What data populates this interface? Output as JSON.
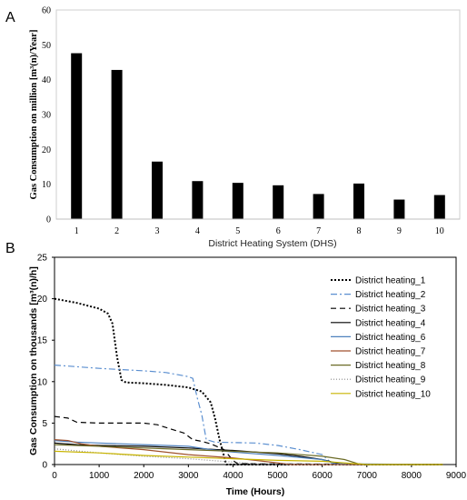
{
  "chart_data": [
    {
      "panel": "A",
      "type": "bar",
      "categories": [
        "1",
        "2",
        "3",
        "4",
        "5",
        "6",
        "7",
        "8",
        "9",
        "10"
      ],
      "values": [
        47.6,
        42.8,
        16.5,
        10.9,
        10.4,
        9.7,
        7.2,
        10.2,
        5.6,
        6.9
      ],
      "title": "",
      "xlabel": "District Heating System (DHS)",
      "ylabel": "Gas Consumption on million [m³(n)/Year]",
      "ylim": [
        0,
        60
      ],
      "yticks": [
        "0",
        "10",
        "20",
        "30",
        "40",
        "50",
        "60"
      ],
      "grid": false,
      "legend": "none",
      "bar_color": "#000000"
    },
    {
      "panel": "B",
      "type": "line",
      "title": "",
      "xlabel": "Time (Hours)",
      "ylabel": "Gas Consumption on thousands [m³(n)/h]",
      "xlim": [
        0,
        9000
      ],
      "ylim": [
        0,
        25
      ],
      "xticks": [
        "0",
        "1000",
        "2000",
        "3000",
        "4000",
        "5000",
        "6000",
        "7000",
        "8000",
        "9000"
      ],
      "yticks": [
        "0",
        "5",
        "10",
        "15",
        "20",
        "25"
      ],
      "grid": false,
      "legend": "top-right",
      "series": [
        {
          "name": "District heating_1",
          "color": "#000000",
          "dash": "2,2",
          "width": 2,
          "points": [
            [
              0,
              20.0
            ],
            [
              500,
              19.5
            ],
            [
              1000,
              18.8
            ],
            [
              1200,
              18.2
            ],
            [
              1300,
              17.0
            ],
            [
              1400,
              13.0
            ],
            [
              1500,
              10.2
            ],
            [
              1600,
              9.9
            ],
            [
              2000,
              9.8
            ],
            [
              2500,
              9.6
            ],
            [
              3000,
              9.3
            ],
            [
              3300,
              8.8
            ],
            [
              3500,
              7.5
            ],
            [
              3600,
              5.5
            ],
            [
              3700,
              3.0
            ],
            [
              3800,
              1.0
            ],
            [
              3850,
              0.0
            ],
            [
              8700,
              0.0
            ]
          ]
        },
        {
          "name": "District heating_2",
          "color": "#5b8fd0",
          "dash": "7,3,2,3",
          "width": 1.2,
          "points": [
            [
              0,
              12.0
            ],
            [
              500,
              11.8
            ],
            [
              1000,
              11.6
            ],
            [
              2000,
              11.3
            ],
            [
              2500,
              11.1
            ],
            [
              3000,
              10.6
            ],
            [
              3100,
              10.4
            ],
            [
              3200,
              8.0
            ],
            [
              3300,
              6.0
            ],
            [
              3400,
              3.0
            ],
            [
              3600,
              2.7
            ],
            [
              4500,
              2.6
            ],
            [
              5000,
              2.3
            ],
            [
              5500,
              1.8
            ],
            [
              6000,
              1.2
            ],
            [
              6200,
              0.2
            ],
            [
              6400,
              0.0
            ],
            [
              8700,
              0.0
            ]
          ]
        },
        {
          "name": "District heating_3",
          "color": "#000000",
          "dash": "6,4",
          "width": 1.2,
          "points": [
            [
              0,
              5.8
            ],
            [
              300,
              5.6
            ],
            [
              500,
              5.1
            ],
            [
              1000,
              5.0
            ],
            [
              2000,
              5.0
            ],
            [
              2300,
              4.8
            ],
            [
              2600,
              4.3
            ],
            [
              2900,
              3.8
            ],
            [
              3100,
              3.0
            ],
            [
              3300,
              2.8
            ],
            [
              3500,
              2.5
            ],
            [
              3800,
              1.8
            ],
            [
              4000,
              0.5
            ],
            [
              4100,
              0.1
            ],
            [
              8700,
              0.0
            ]
          ]
        },
        {
          "name": "District heating_4",
          "color": "#000000",
          "dash": "",
          "width": 1.2,
          "points": [
            [
              0,
              2.6
            ],
            [
              500,
              2.4
            ],
            [
              1000,
              2.3
            ],
            [
              2000,
              2.2
            ],
            [
              3000,
              2.0
            ],
            [
              4000,
              1.7
            ],
            [
              5000,
              1.3
            ],
            [
              5500,
              1.0
            ],
            [
              6000,
              0.6
            ],
            [
              6300,
              0.2
            ],
            [
              6500,
              0.0
            ],
            [
              8700,
              0.0
            ]
          ]
        },
        {
          "name": "District heating_6",
          "color": "#4f81bd",
          "dash": "",
          "width": 1.2,
          "points": [
            [
              0,
              2.9
            ],
            [
              500,
              2.7
            ],
            [
              1000,
              2.6
            ],
            [
              2000,
              2.4
            ],
            [
              3000,
              2.2
            ],
            [
              3500,
              1.8
            ],
            [
              4000,
              1.5
            ],
            [
              5000,
              1.1
            ],
            [
              6000,
              0.6
            ],
            [
              6300,
              0.1
            ],
            [
              8700,
              0.0
            ]
          ]
        },
        {
          "name": "District heating_7",
          "color": "#a0522d",
          "dash": "",
          "width": 1.2,
          "points": [
            [
              0,
              3.0
            ],
            [
              300,
              2.9
            ],
            [
              600,
              2.5
            ],
            [
              1000,
              2.2
            ],
            [
              2000,
              1.8
            ],
            [
              3000,
              1.2
            ],
            [
              4000,
              0.8
            ],
            [
              4500,
              0.5
            ],
            [
              5000,
              0.2
            ],
            [
              5300,
              0.0
            ],
            [
              8700,
              0.0
            ]
          ]
        },
        {
          "name": "District heating_8",
          "color": "#6b6b26",
          "dash": "",
          "width": 1.2,
          "points": [
            [
              0,
              2.4
            ],
            [
              1000,
              2.2
            ],
            [
              2000,
              2.0
            ],
            [
              3000,
              1.8
            ],
            [
              4000,
              1.6
            ],
            [
              5000,
              1.4
            ],
            [
              6000,
              1.0
            ],
            [
              6500,
              0.6
            ],
            [
              6800,
              0.1
            ],
            [
              7000,
              0.0
            ],
            [
              8700,
              0.0
            ]
          ]
        },
        {
          "name": "District heating_9",
          "color": "#8c8c8c",
          "dash": "1,2",
          "width": 1.2,
          "points": [
            [
              0,
              1.9
            ],
            [
              1000,
              1.4
            ],
            [
              2000,
              1.0
            ],
            [
              3000,
              0.7
            ],
            [
              4000,
              0.3
            ],
            [
              4500,
              0.1
            ],
            [
              8700,
              0.0
            ]
          ]
        },
        {
          "name": "District heating_10",
          "color": "#c8b400",
          "dash": "",
          "width": 1.2,
          "points": [
            [
              0,
              1.6
            ],
            [
              1000,
              1.4
            ],
            [
              2000,
              1.1
            ],
            [
              3000,
              0.9
            ],
            [
              4000,
              0.7
            ],
            [
              5000,
              0.5
            ],
            [
              6000,
              0.4
            ],
            [
              6500,
              0.2
            ],
            [
              7000,
              0.0
            ],
            [
              8700,
              0.0
            ]
          ]
        }
      ]
    }
  ]
}
